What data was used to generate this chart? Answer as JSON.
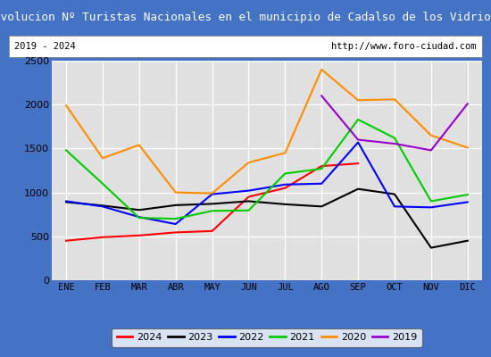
{
  "title": "Evolucion Nº Turistas Nacionales en el municipio de Cadalso de los Vidrios",
  "subtitle_left": "2019 - 2024",
  "subtitle_right": "http://www.foro-ciudad.com",
  "months": [
    "ENE",
    "FEB",
    "MAR",
    "ABR",
    "MAY",
    "JUN",
    "JUL",
    "AGO",
    "SEP",
    "OCT",
    "NOV",
    "DIC"
  ],
  "series": [
    {
      "year": "2024",
      "color": "#ff0000",
      "values": [
        450,
        490,
        510,
        545,
        560,
        950,
        1050,
        1300,
        1330,
        null,
        null,
        null
      ]
    },
    {
      "year": "2023",
      "color": "#000000",
      "values": [
        890,
        850,
        800,
        855,
        870,
        900,
        865,
        840,
        1040,
        980,
        370,
        450
      ]
    },
    {
      "year": "2022",
      "color": "#0000ff",
      "values": [
        900,
        840,
        720,
        640,
        980,
        1020,
        1090,
        1100,
        1570,
        840,
        830,
        890
      ]
    },
    {
      "year": "2021",
      "color": "#00cc00",
      "values": [
        1480,
        1100,
        710,
        700,
        790,
        795,
        1215,
        1270,
        1830,
        1620,
        900,
        975
      ]
    },
    {
      "year": "2020",
      "color": "#ff8c00",
      "values": [
        1990,
        1390,
        1540,
        1000,
        990,
        1340,
        1450,
        2400,
        2050,
        2060,
        1650,
        1510
      ]
    },
    {
      "year": "2019",
      "color": "#9900cc",
      "values": [
        null,
        null,
        null,
        null,
        null,
        null,
        null,
        2100,
        1600,
        1555,
        1480,
        2010
      ]
    }
  ],
  "ylim": [
    0,
    2500
  ],
  "yticks": [
    0,
    500,
    1000,
    1500,
    2000,
    2500
  ],
  "title_bg": "#4472c4",
  "title_fg": "#ffffff",
  "plot_bg": "#e0e0e0",
  "grid_color": "#ffffff",
  "border_color": "#4472c4",
  "fig_width": 5.5,
  "fig_height": 4.0,
  "dpi": 100
}
